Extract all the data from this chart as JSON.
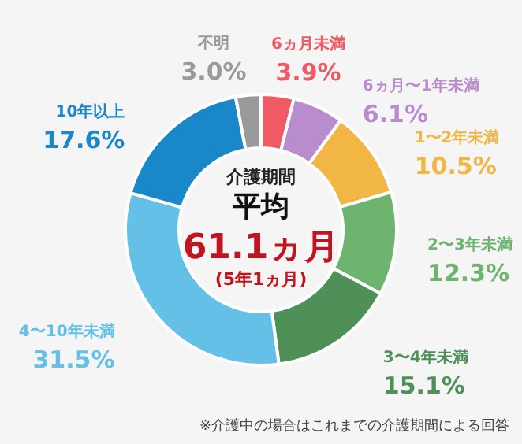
{
  "chart_data": {
    "type": "donut",
    "title": "介護期間",
    "subtitle": "平均",
    "categories": [
      "6ヵ月未満",
      "6ヵ月〜1年未満",
      "1〜2年未満",
      "2〜3年未満",
      "3〜4年未満",
      "4〜10年未満",
      "10年以上",
      "不明"
    ],
    "values": [
      3.9,
      6.1,
      10.5,
      12.3,
      15.1,
      31.5,
      17.6,
      3.0
    ],
    "value_labels": [
      "3.9%",
      "6.1%",
      "10.5%",
      "12.3%",
      "15.1%",
      "31.5%",
      "17.6%",
      "3.0%"
    ],
    "colors": [
      "#ef5a64",
      "#b98dcb",
      "#f1b643",
      "#6db56f",
      "#4f8f58",
      "#64c0e6",
      "#1a87c8",
      "#9a9a9a"
    ],
    "annotations": [
      "61.1ヵ月",
      "(5年1ヵ月)",
      "※介護中の場合はこれまでの介護期間による回答"
    ]
  }
}
